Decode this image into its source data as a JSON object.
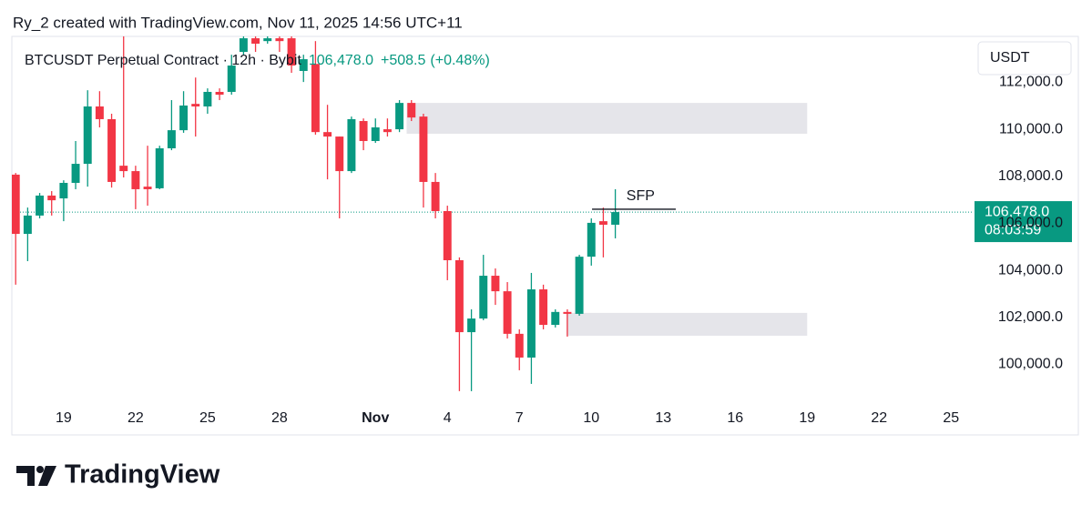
{
  "header": {
    "text": "Ry_2 created with TradingView.com, Nov 11, 2025 14:56 UTC+11"
  },
  "chart_data": {
    "type": "candlestick",
    "legend": {
      "title": "BTCUSDT Perpetual Contract · 12h · Bybit",
      "price": "106,478.0",
      "change": "+508.5",
      "change_pct": "(+0.48%)"
    },
    "currency": "USDT",
    "x": [
      17,
      17.5,
      18,
      18.5,
      19,
      19.5,
      20,
      20.5,
      21,
      21.5,
      22,
      22.5,
      23,
      23.5,
      24,
      24.5,
      25,
      25.5,
      26,
      26.5,
      27,
      27.5,
      28,
      28.5,
      29,
      29.5,
      30,
      30.5,
      31,
      31.5,
      32,
      32.5,
      33,
      33.5,
      34,
      34.5,
      35,
      35.5,
      36,
      36.5,
      37,
      37.5,
      38,
      38.5,
      39,
      39.5,
      40,
      40.5,
      41,
      41.5,
      42
    ],
    "open": [
      108070,
      105550,
      106330,
      107180,
      107060,
      107720,
      108530,
      110970,
      110430,
      108450,
      108220,
      107560,
      107490,
      109190,
      109960,
      111080,
      110970,
      111590,
      111590,
      113290,
      113870,
      113750,
      113870,
      113870,
      112480,
      112780,
      109880,
      109690,
      108220,
      110350,
      109500,
      110000,
      110000,
      111120,
      110540,
      107760,
      106520,
      104430,
      101370,
      101950,
      103770,
      103110,
      101300,
      100290,
      103190,
      101680,
      102230,
      102150,
      104580,
      106090,
      105940
    ],
    "high": [
      108140,
      106670,
      107290,
      107370,
      107830,
      109500,
      111660,
      111620,
      110660,
      113950,
      108450,
      109300,
      109300,
      111240,
      111620,
      112200,
      111740,
      111740,
      113170,
      113950,
      113950,
      113950,
      113950,
      113950,
      113170,
      113750,
      111040,
      109690,
      110540,
      110460,
      110460,
      110460,
      111240,
      111240,
      110660,
      108140,
      106750,
      104550,
      102340,
      104660,
      104080,
      103500,
      101490,
      103890,
      103390,
      102340,
      102340,
      104660,
      106210,
      106670,
      107450
    ],
    "low": [
      103390,
      104390,
      106210,
      106330,
      106090,
      107450,
      107560,
      110080,
      107520,
      107950,
      106600,
      106750,
      107450,
      109110,
      109850,
      109690,
      110660,
      111240,
      111470,
      113170,
      113290,
      113640,
      113290,
      112400,
      112010,
      109770,
      107870,
      106210,
      108140,
      109110,
      109420,
      109690,
      109880,
      110350,
      106670,
      106210,
      103580,
      98860,
      98860,
      101880,
      102530,
      101100,
      99750,
      99170,
      101490,
      101570,
      101180,
      102070,
      104200,
      104550,
      105360
    ],
    "close": [
      105550,
      106330,
      107180,
      106980,
      107720,
      108530,
      110970,
      110430,
      107760,
      108220,
      107450,
      107450,
      109190,
      109960,
      111010,
      110970,
      111590,
      111470,
      112710,
      113870,
      113640,
      113870,
      113750,
      112710,
      112980,
      109880,
      109690,
      108220,
      110430,
      109500,
      110080,
      109880,
      111120,
      110500,
      107760,
      106520,
      104430,
      101370,
      101950,
      103770,
      103110,
      101300,
      100290,
      103190,
      101680,
      102230,
      102150,
      104580,
      106020,
      105940,
      106478
    ],
    "up_color": "#089981",
    "down_color": "#f23645",
    "xlim": [
      16.84,
      56.9
    ],
    "ylim": [
      98470,
      113950
    ],
    "xticks": [
      {
        "value": 19,
        "label": "19"
      },
      {
        "value": 22,
        "label": "22"
      },
      {
        "value": 25,
        "label": "25"
      },
      {
        "value": 28,
        "label": "28"
      },
      {
        "value": 32,
        "label": "Nov"
      },
      {
        "value": 35,
        "label": "4"
      },
      {
        "value": 38,
        "label": "7"
      },
      {
        "value": 41,
        "label": "10"
      },
      {
        "value": 44,
        "label": "13"
      },
      {
        "value": 47,
        "label": "16"
      },
      {
        "value": 50,
        "label": "19"
      },
      {
        "value": 53,
        "label": "22"
      },
      {
        "value": 56,
        "label": "25"
      }
    ],
    "yticks": [
      {
        "value": 100000,
        "label": "100,000.0"
      },
      {
        "value": 102000,
        "label": "102,000.0"
      },
      {
        "value": 104000,
        "label": "104,000.0"
      },
      {
        "value": 106000,
        "label": "106,000.0"
      },
      {
        "value": 108000,
        "label": "108,000.0"
      },
      {
        "value": 110000,
        "label": "110,000.0"
      },
      {
        "value": 112000,
        "label": "112,000.0"
      }
    ],
    "zones": [
      {
        "x": [
          33.3,
          50
        ],
        "y": [
          109810,
          111120
        ],
        "color": "#e0e0e6"
      },
      {
        "x": [
          39.96,
          50
        ],
        "y": [
          101220,
          102190
        ],
        "color": "#e0e0e6"
      }
    ],
    "sfp": {
      "label": "SFP",
      "x": [
        41.03,
        44.52
      ],
      "y": 106600
    },
    "last_price": {
      "value": 106478,
      "label": "106,478.0"
    },
    "countdown": "08:03:59"
  },
  "footer": {
    "brand": "TradingView"
  }
}
